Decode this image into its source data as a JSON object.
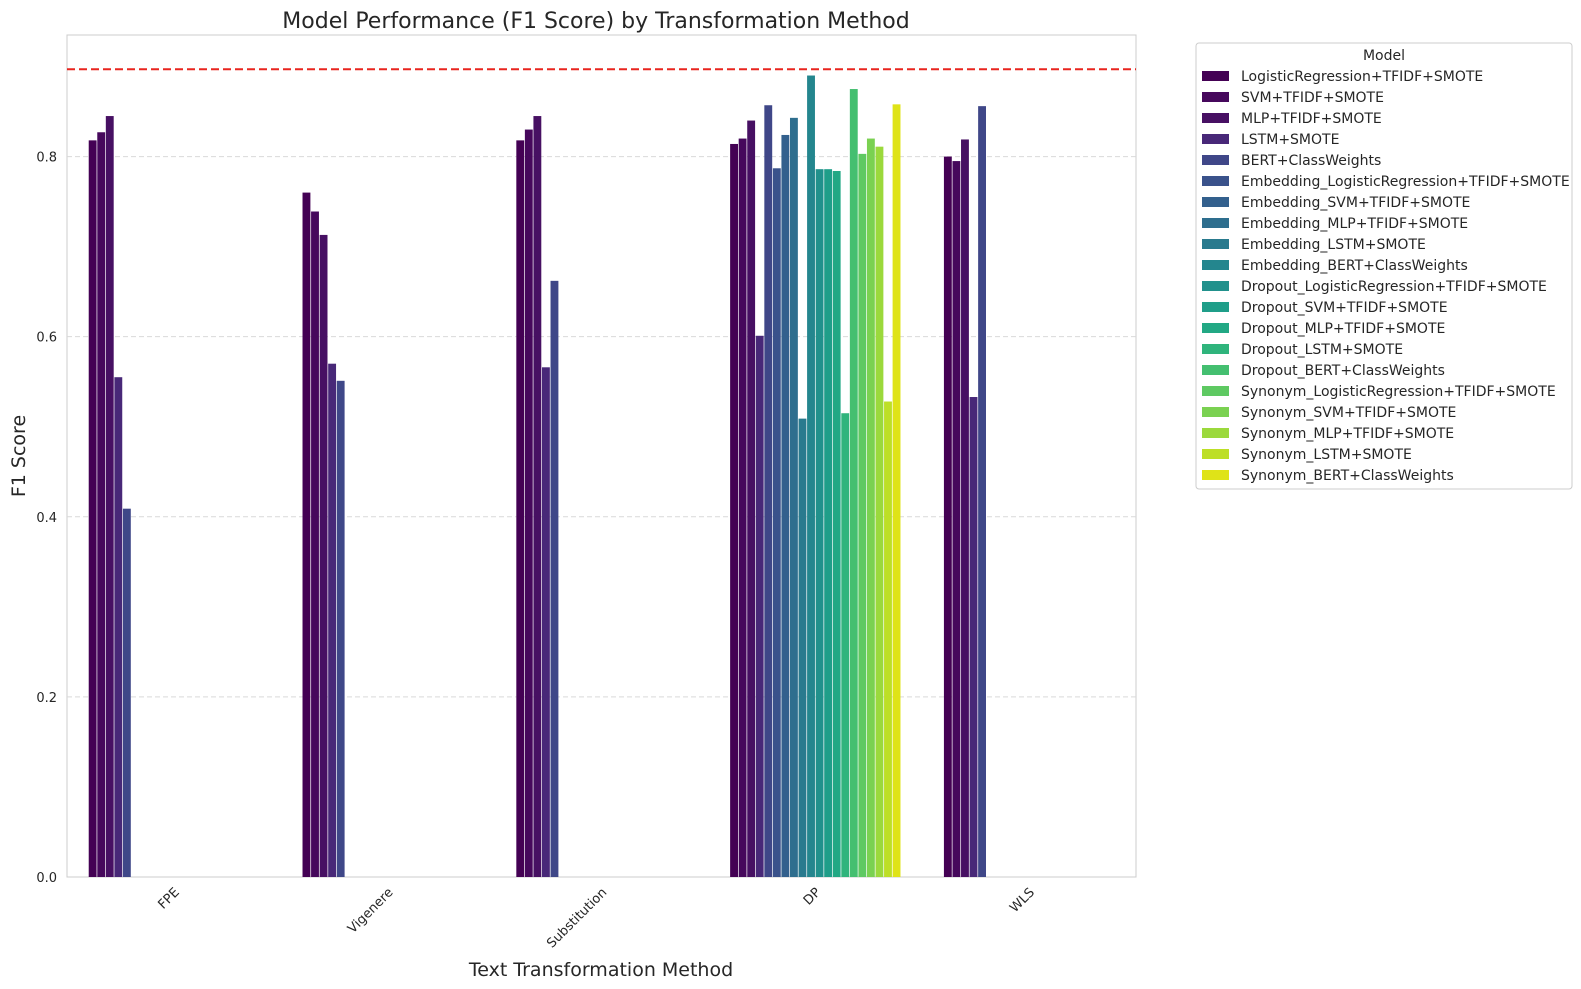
{
  "chart_data": {
    "type": "bar",
    "title": "Model Performance (F1 Score) by Transformation Method",
    "xlabel": "Text Transformation Method",
    "ylabel": "F1 Score",
    "ylim": [
      0,
      0.935
    ],
    "yticks": [
      0.0,
      0.2,
      0.4,
      0.6,
      0.8
    ],
    "ytick_labels": [
      "0.0",
      "0.2",
      "0.4",
      "0.6",
      "0.8"
    ],
    "grid": "y-dashed",
    "reference_line": {
      "value": 0.897,
      "color": "#e8251f",
      "style": "dashed"
    },
    "categories": [
      "FPE",
      "Vigenere",
      "Substitution",
      "DP",
      "WLS"
    ],
    "legend": {
      "title": "Model",
      "placement": "outside-right"
    },
    "series": [
      {
        "name": "LogisticRegression+TFIDF+SMOTE",
        "color": "#440154",
        "values": [
          0.818,
          0.76,
          0.818,
          0.814,
          0.8
        ]
      },
      {
        "name": "SVM+TFIDF+SMOTE",
        "color": "#46085c",
        "values": [
          0.827,
          0.739,
          0.83,
          0.82,
          0.795
        ]
      },
      {
        "name": "MLP+TFIDF+SMOTE",
        "color": "#471063",
        "values": [
          0.845,
          0.713,
          0.845,
          0.84,
          0.819
        ]
      },
      {
        "name": "LSTM+SMOTE",
        "color": "#482878",
        "values": [
          0.555,
          0.57,
          0.566,
          0.601,
          0.533
        ]
      },
      {
        "name": "BERT+ClassWeights",
        "color": "#3f4788",
        "values": [
          0.409,
          0.551,
          0.662,
          0.857,
          0.856
        ]
      },
      {
        "name": "Embedding_LogisticRegression+TFIDF+SMOTE",
        "color": "#3a528b",
        "values": [
          null,
          null,
          null,
          0.787,
          null
        ]
      },
      {
        "name": "Embedding_SVM+TFIDF+SMOTE",
        "color": "#33608d",
        "values": [
          null,
          null,
          null,
          0.824,
          null
        ]
      },
      {
        "name": "Embedding_MLP+TFIDF+SMOTE",
        "color": "#2e6e8e",
        "values": [
          null,
          null,
          null,
          0.843,
          null
        ]
      },
      {
        "name": "Embedding_LSTM+SMOTE",
        "color": "#297a8e",
        "values": [
          null,
          null,
          null,
          0.509,
          null
        ]
      },
      {
        "name": "Embedding_BERT+ClassWeights",
        "color": "#24868e",
        "values": [
          null,
          null,
          null,
          0.89,
          null
        ]
      },
      {
        "name": "Dropout_LogisticRegression+TFIDF+SMOTE",
        "color": "#21918c",
        "values": [
          null,
          null,
          null,
          0.786,
          null
        ]
      },
      {
        "name": "Dropout_SVM+TFIDF+SMOTE",
        "color": "#1f9e89",
        "values": [
          null,
          null,
          null,
          0.786,
          null
        ]
      },
      {
        "name": "Dropout_MLP+TFIDF+SMOTE",
        "color": "#22a884",
        "values": [
          null,
          null,
          null,
          0.784,
          null
        ]
      },
      {
        "name": "Dropout_LSTM+SMOTE",
        "color": "#2fb47c",
        "values": [
          null,
          null,
          null,
          0.515,
          null
        ]
      },
      {
        "name": "Dropout_BERT+ClassWeights",
        "color": "#44bf70",
        "values": [
          null,
          null,
          null,
          0.875,
          null
        ]
      },
      {
        "name": "Synonym_LogisticRegression+TFIDF+SMOTE",
        "color": "#5ec962",
        "values": [
          null,
          null,
          null,
          0.803,
          null
        ]
      },
      {
        "name": "Synonym_SVM+TFIDF+SMOTE",
        "color": "#7ad151",
        "values": [
          null,
          null,
          null,
          0.82,
          null
        ]
      },
      {
        "name": "Synonym_MLP+TFIDF+SMOTE",
        "color": "#9bd93c",
        "values": [
          null,
          null,
          null,
          0.811,
          null
        ]
      },
      {
        "name": "Synonym_LSTM+SMOTE",
        "color": "#bddf26",
        "values": [
          null,
          null,
          null,
          0.528,
          null
        ]
      },
      {
        "name": "Synonym_BERT+ClassWeights",
        "color": "#dfe318",
        "values": [
          null,
          null,
          null,
          0.858,
          null
        ]
      }
    ]
  }
}
